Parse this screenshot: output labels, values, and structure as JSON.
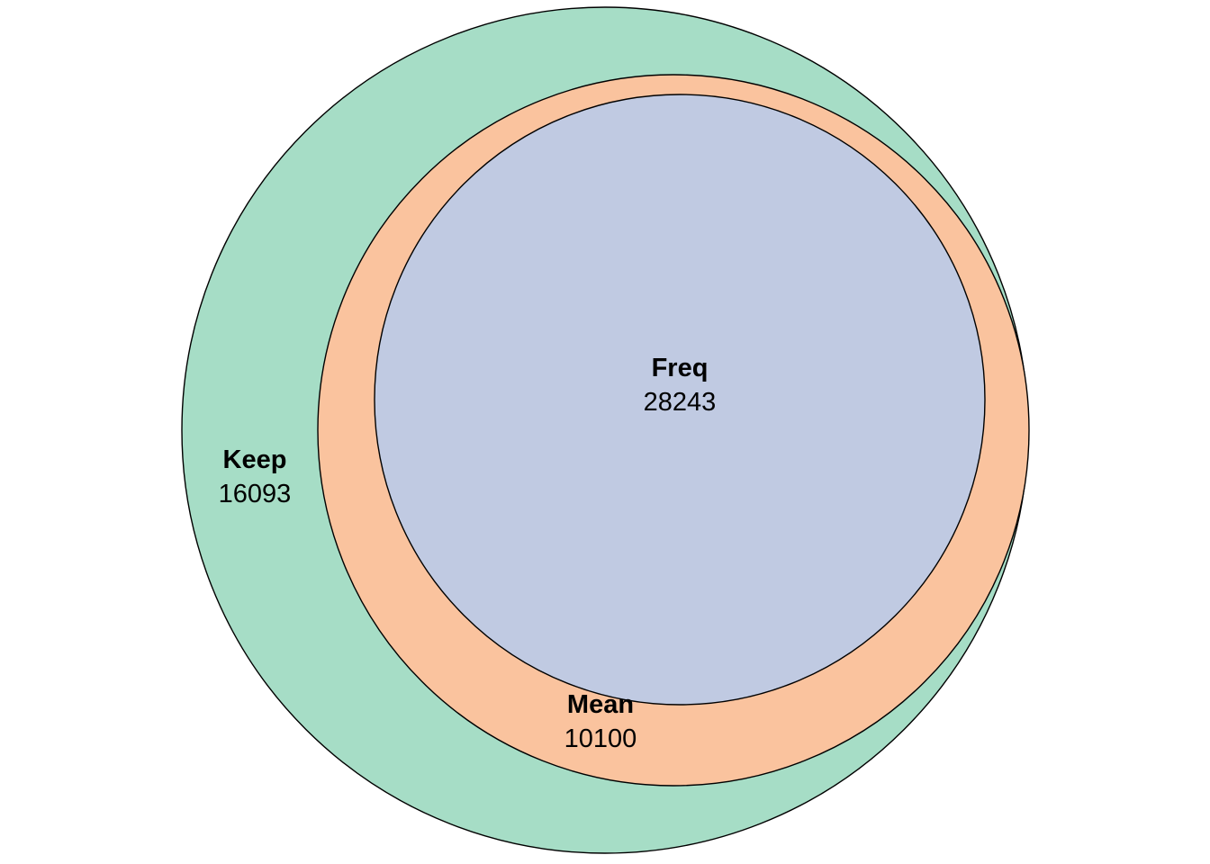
{
  "sets": [
    {
      "id": "keep",
      "name": "Keep",
      "count": "16093",
      "color": "#A6DDC6"
    },
    {
      "id": "mean",
      "name": "Mean",
      "count": "10100",
      "color": "#FAC39E"
    },
    {
      "id": "freq",
      "name": "Freq",
      "count": "28243",
      "color": "#C0CAE2"
    }
  ]
}
